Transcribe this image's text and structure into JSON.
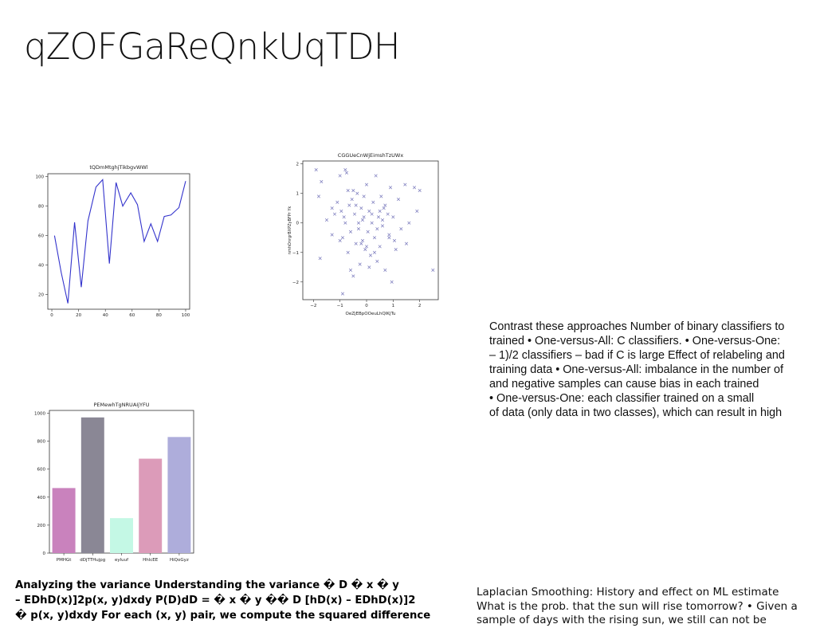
{
  "slide": {
    "title": "qZOFGaReQnkUqTDH",
    "text_block": [
      "Contrast these approaches Number of binary classifiers to",
      "trained • One-versus-All: C classifiers. • One-versus-One:",
      "– 1)/2 classifiers – bad if C is large Effect of relabeling and",
      "training data • One-versus-All: imbalance in the number of",
      "and negative samples can cause bias in each trained",
      "• One-versus-One: each classifier trained on a small",
      "of data (only data in two classes), which can result in high"
    ],
    "bold_block": [
      "Analyzing the variance Understanding the variance � D � x � y",
      "– EDhD(x)]2p(x, y)dxdy P(D)dD = � x � y �� D [hD(x) – EDhD(x)]2",
      "� p(x, y)dxdy For each (x, y) pair, we compute the squared difference"
    ],
    "bottom_right": [
      "Laplacian Smoothing: History and effect on ML estimate",
      "What is the prob. that the sun will rise tomorrow? • Given a",
      "sample of days with the rising sun, we still can not be"
    ]
  },
  "chart_data": [
    {
      "type": "line",
      "title": "tQDmMtghjTikbgvWWl",
      "xlabel": "",
      "ylabel": "",
      "xlim": [
        -3,
        103
      ],
      "ylim": [
        10,
        102
      ],
      "xticks": [
        0,
        20,
        40,
        60,
        80,
        100
      ],
      "yticks": [
        20,
        40,
        60,
        80,
        100
      ],
      "color": "#3333cc",
      "x": [
        2,
        7,
        12,
        17,
        22,
        27,
        33,
        38,
        43,
        48,
        53,
        59,
        64,
        69,
        74,
        79,
        84,
        89,
        95,
        100
      ],
      "y": [
        60,
        35,
        14,
        69,
        25,
        70,
        93,
        98,
        41,
        96,
        80,
        89,
        81,
        56,
        68,
        56,
        73,
        74,
        79,
        97
      ]
    },
    {
      "type": "scatter",
      "title": "CGGUeCnWjEimshTzUWx",
      "xlabel": "OeZjEBpOOeuLhQIKjTu",
      "ylabel": "nmhOnrgrBXPZyBFPr Yk",
      "xlim": [
        -2.4,
        2.7
      ],
      "ylim": [
        -2.6,
        2.1
      ],
      "xticks": [
        -2,
        -1,
        0,
        1,
        2
      ],
      "yticks": [
        -2,
        -1,
        0,
        1,
        2
      ],
      "marker": "x",
      "color": "#7777bb",
      "points": [
        [
          -1.9,
          1.8
        ],
        [
          -1.8,
          0.9
        ],
        [
          -1.7,
          1.4
        ],
        [
          -1.75,
          -1.2
        ],
        [
          -1.5,
          0.1
        ],
        [
          -1.3,
          -0.4
        ],
        [
          -1.2,
          0.3
        ],
        [
          -1.1,
          0.7
        ],
        [
          -1.0,
          1.6
        ],
        [
          -0.95,
          0.4
        ],
        [
          -0.9,
          -0.5
        ],
        [
          -0.85,
          0.2
        ],
        [
          -0.8,
          1.8
        ],
        [
          -0.75,
          1.7
        ],
        [
          -0.7,
          1.1
        ],
        [
          -0.7,
          -1.0
        ],
        [
          -0.65,
          0.6
        ],
        [
          -0.6,
          -0.3
        ],
        [
          -0.55,
          0.8
        ],
        [
          -0.5,
          -1.8
        ],
        [
          -0.45,
          0.3
        ],
        [
          -0.4,
          -0.7
        ],
        [
          -0.35,
          1.0
        ],
        [
          -0.3,
          0.0
        ],
        [
          -0.25,
          -1.4
        ],
        [
          -0.2,
          0.5
        ],
        [
          -0.15,
          -0.6
        ],
        [
          -0.1,
          0.2
        ],
        [
          -0.05,
          -0.9
        ],
        [
          0.0,
          1.3
        ],
        [
          0.05,
          -0.3
        ],
        [
          0.1,
          0.4
        ],
        [
          0.15,
          -1.1
        ],
        [
          0.2,
          0.0
        ],
        [
          0.25,
          0.7
        ],
        [
          0.3,
          -0.5
        ],
        [
          0.35,
          1.6
        ],
        [
          0.4,
          -1.3
        ],
        [
          0.45,
          0.2
        ],
        [
          0.5,
          -0.8
        ],
        [
          0.55,
          0.9
        ],
        [
          0.6,
          -0.1
        ],
        [
          0.65,
          0.5
        ],
        [
          0.7,
          -1.6
        ],
        [
          0.8,
          0.3
        ],
        [
          0.85,
          -0.4
        ],
        [
          0.9,
          1.2
        ],
        [
          0.95,
          -2.0
        ],
        [
          1.0,
          0.2
        ],
        [
          1.05,
          -0.6
        ],
        [
          1.2,
          0.8
        ],
        [
          1.3,
          -0.2
        ],
        [
          1.45,
          1.3
        ],
        [
          1.5,
          -0.7
        ],
        [
          1.6,
          0.0
        ],
        [
          1.8,
          1.2
        ],
        [
          1.9,
          0.4
        ],
        [
          2.0,
          1.1
        ],
        [
          2.5,
          -1.6
        ],
        [
          -1.3,
          0.5
        ],
        [
          -0.6,
          -1.6
        ],
        [
          0.3,
          -1.0
        ],
        [
          -0.2,
          -0.7
        ],
        [
          0.6,
          0.1
        ],
        [
          -0.4,
          0.6
        ],
        [
          0.1,
          -1.5
        ],
        [
          -0.8,
          0.0
        ],
        [
          1.1,
          -0.9
        ],
        [
          -0.1,
          0.9
        ],
        [
          0.7,
          0.6
        ],
        [
          -1.0,
          -0.6
        ],
        [
          -0.3,
          -0.2
        ],
        [
          0.2,
          0.3
        ],
        [
          -0.5,
          1.1
        ],
        [
          0.4,
          -0.2
        ],
        [
          -0.9,
          -2.4
        ],
        [
          0.0,
          -0.8
        ],
        [
          0.5,
          0.4
        ],
        [
          -0.15,
          0.1
        ],
        [
          0.85,
          -0.5
        ]
      ]
    },
    {
      "type": "bar",
      "title": "PEMewhTgNRUAIjYFU",
      "xlabel": "",
      "ylabel": "",
      "ylim": [
        0,
        1020
      ],
      "yticks": [
        0,
        200,
        400,
        600,
        800,
        1000
      ],
      "categories": [
        "PMHGt",
        "dDjTTHujpg",
        "eyluuf",
        "HhlcEE",
        "HiQoGyz"
      ],
      "values": [
        465,
        970,
        250,
        675,
        830
      ],
      "colors": [
        "#c982bd",
        "#8a8795",
        "#c4f8e5",
        "#dc9bb9",
        "#aeaddb"
      ]
    }
  ]
}
